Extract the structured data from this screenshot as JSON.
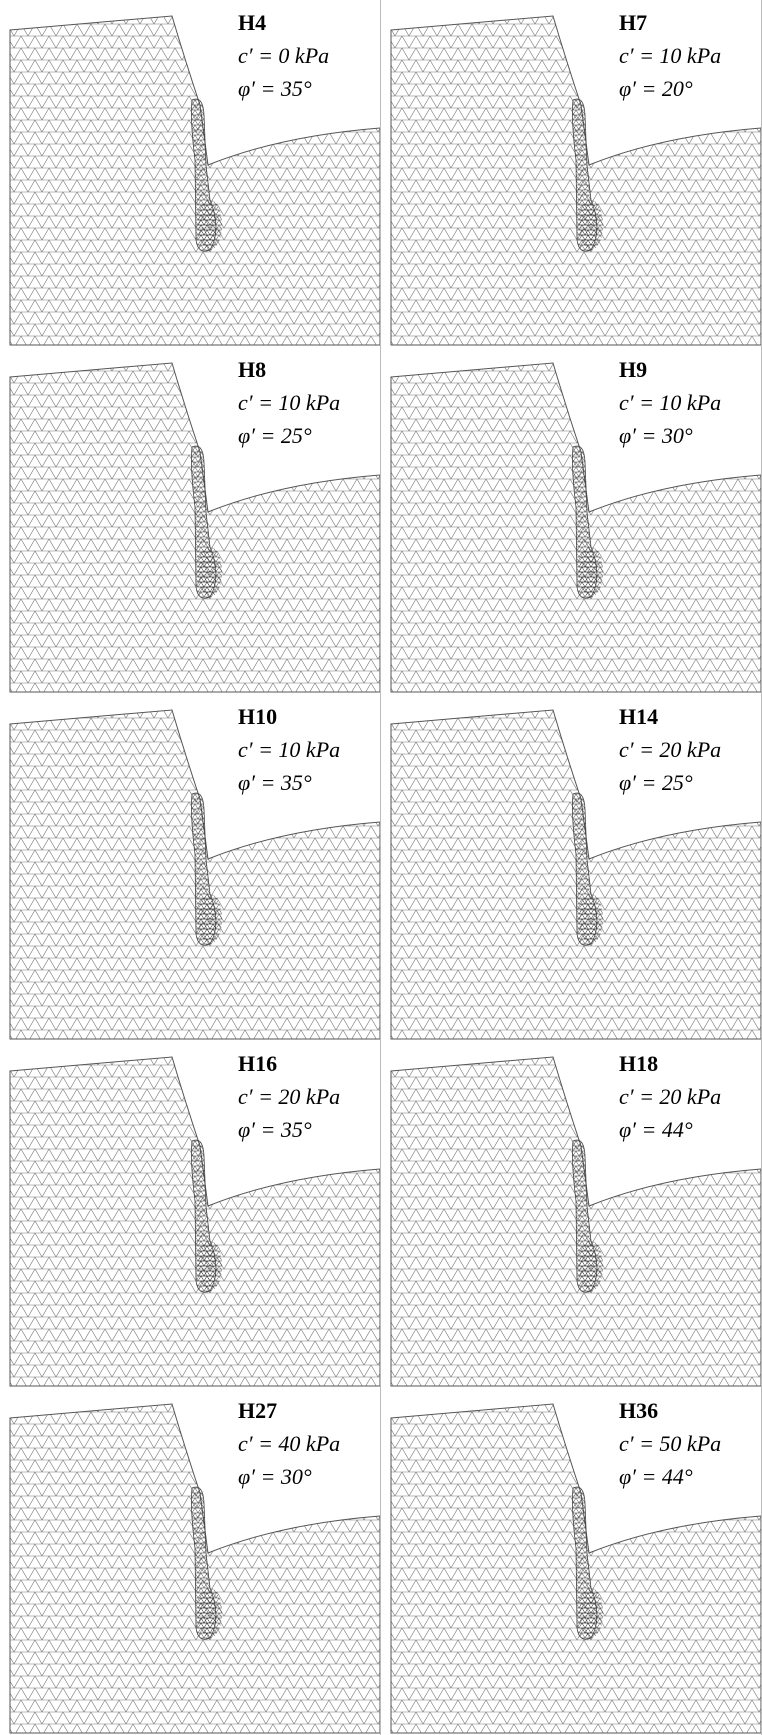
{
  "panels": [
    {
      "id": "H4",
      "cohesion": "c′ = 0 kPa",
      "friction": "φ′ = 35°"
    },
    {
      "id": "H7",
      "cohesion": "c′ = 10 kPa",
      "friction": "φ′ = 20°"
    },
    {
      "id": "H8",
      "cohesion": "c′ = 10 kPa",
      "friction": "φ′ = 25°"
    },
    {
      "id": "H9",
      "cohesion": "c′ = 10 kPa",
      "friction": "φ′ = 30°"
    },
    {
      "id": "H10",
      "cohesion": "c′ = 10 kPa",
      "friction": "φ′ = 35°"
    },
    {
      "id": "H14",
      "cohesion": "c′ = 20 kPa",
      "friction": "φ′ = 25°"
    },
    {
      "id": "H16",
      "cohesion": "c′ = 20 kPa",
      "friction": "φ′ = 35°"
    },
    {
      "id": "H18",
      "cohesion": "c′ = 20 kPa",
      "friction": "φ′ = 44°"
    },
    {
      "id": "H27",
      "cohesion": "c′ = 40 kPa",
      "friction": "φ′ = 30°"
    },
    {
      "id": "H36",
      "cohesion": "c′ = 50 kPa",
      "friction": "φ′ = 44°"
    }
  ]
}
